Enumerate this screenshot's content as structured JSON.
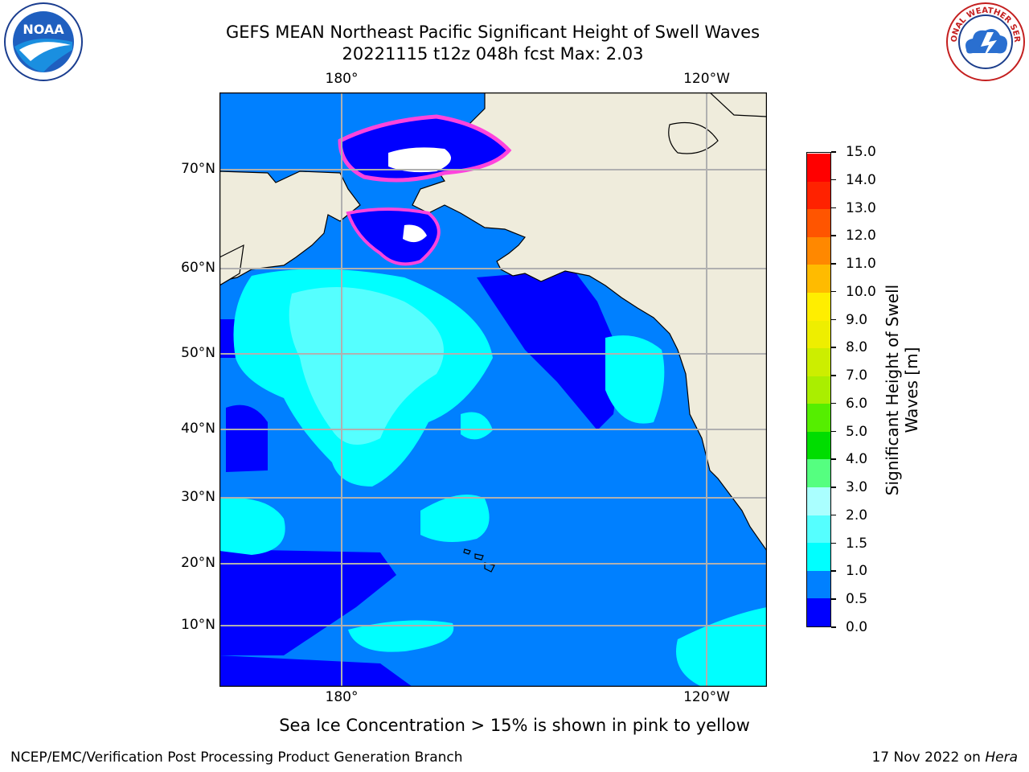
{
  "header": {
    "title_line1": "GEFS MEAN Northeast Pacific Significant Height of Swell Waves",
    "title_line2": "20221115 t12z 048h fcst   Max: 2.03"
  },
  "logos": {
    "left": "NOAA",
    "right": "NATIONAL WEATHER SERVICE"
  },
  "map": {
    "lon_top": [
      "180°",
      "120°W"
    ],
    "lon_bottom": [
      "180°",
      "120°W"
    ],
    "lat_labels": [
      "70°N",
      "60°N",
      "50°N",
      "40°N",
      "30°N",
      "20°N",
      "10°N"
    ],
    "land_color": "#efecdc",
    "ocean_color": "#0080ff",
    "ice_note": "Sea Ice Concentration > 15% is shown in pink to yellow"
  },
  "colorbar": {
    "title": "Significant Height of Swell Waves [m]",
    "levels": [
      "0.0",
      "0.5",
      "1.0",
      "1.5",
      "2.0",
      "3.0",
      "4.0",
      "5.0",
      "6.0",
      "7.0",
      "8.0",
      "9.0",
      "10.0",
      "11.0",
      "12.0",
      "13.0",
      "14.0",
      "15.0"
    ],
    "colors": [
      "#0000ff",
      "#0080ff",
      "#00ffff",
      "#55ffff",
      "#aaffff",
      "#55ff80",
      "#00dd00",
      "#55ee00",
      "#aaee00",
      "#ccee00",
      "#eeee00",
      "#ffee00",
      "#ffbb00",
      "#ff8800",
      "#ff5500",
      "#ff2200",
      "#ff0000"
    ]
  },
  "footer": {
    "left": "NCEP/EMC/Verification Post Processing Product Generation Branch",
    "right_prefix": "17 Nov 2022 on ",
    "right_machine": "Hera"
  }
}
